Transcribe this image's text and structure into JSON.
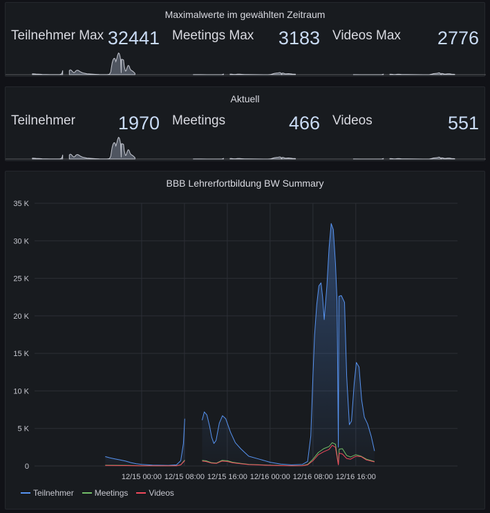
{
  "panel_max": {
    "title": "Maximalwerte im gewählten Zeitraum",
    "stats": [
      {
        "label": "Teilnehmer Max",
        "value": "32441"
      },
      {
        "label": "Meetings Max",
        "value": "3183"
      },
      {
        "label": "Videos Max",
        "value": "2776"
      }
    ]
  },
  "panel_current": {
    "title": "Aktuell",
    "stats": [
      {
        "label": "Teilnehmer",
        "value": "1970"
      },
      {
        "label": "Meetings",
        "value": "466"
      },
      {
        "label": "Videos",
        "value": "551"
      }
    ]
  },
  "colors": {
    "teilnehmer": "#5794f2",
    "meetings": "#73bf69",
    "videos": "#f2495c",
    "grid": "#2c2f36",
    "axis_text": "#c7c8d0"
  },
  "chart_data": {
    "type": "line",
    "title": "BBB Lehrerfortbildung BW Summary",
    "ylim": [
      0,
      35000
    ],
    "xlim": [
      -20,
      59
    ],
    "yticks": [
      {
        "v": 0,
        "label": "0"
      },
      {
        "v": 5000,
        "label": "5 K"
      },
      {
        "v": 10000,
        "label": "10 K"
      },
      {
        "v": 15000,
        "label": "15 K"
      },
      {
        "v": 20000,
        "label": "20 K"
      },
      {
        "v": 25000,
        "label": "25 K"
      },
      {
        "v": 30000,
        "label": "30 K"
      },
      {
        "v": 35000,
        "label": "35 K"
      }
    ],
    "xticks": [
      {
        "v": 0,
        "label": "12/15 00:00"
      },
      {
        "v": 8,
        "label": "12/15 08:00"
      },
      {
        "v": 16,
        "label": "12/15 16:00"
      },
      {
        "v": 24,
        "label": "12/16 00:00"
      },
      {
        "v": 32,
        "label": "12/16 08:00"
      },
      {
        "v": 40,
        "label": "12/16 16:00"
      }
    ],
    "series": [
      {
        "name": "Teilnehmer",
        "segments": [
          [
            [
              -6.8,
              1250
            ],
            [
              -6,
              1100
            ],
            [
              -5,
              950
            ],
            [
              -4,
              800
            ],
            [
              -3,
              650
            ],
            [
              -2,
              450
            ],
            [
              -1,
              300
            ],
            [
              0,
              200
            ],
            [
              2,
              120
            ],
            [
              5,
              80
            ],
            [
              6.5,
              150
            ],
            [
              7.3,
              700
            ],
            [
              7.8,
              3000
            ],
            [
              8.05,
              6300
            ]
          ],
          [
            [
              11.3,
              6100
            ],
            [
              11.7,
              7200
            ],
            [
              12.2,
              6800
            ],
            [
              12.7,
              5300
            ],
            [
              13.1,
              3800
            ],
            [
              13.5,
              3000
            ],
            [
              13.9,
              3400
            ],
            [
              14.5,
              5700
            ],
            [
              15.1,
              6700
            ],
            [
              15.7,
              6300
            ],
            [
              16.6,
              4500
            ],
            [
              17.5,
              3100
            ],
            [
              18.5,
              2300
            ],
            [
              20,
              1300
            ],
            [
              22,
              900
            ],
            [
              24,
              500
            ],
            [
              26,
              250
            ],
            [
              28,
              150
            ],
            [
              30,
              200
            ],
            [
              31,
              600
            ],
            [
              31.6,
              4000
            ],
            [
              32,
              12000
            ],
            [
              32.3,
              17500
            ],
            [
              32.7,
              21500
            ],
            [
              33.1,
              24000
            ],
            [
              33.5,
              24400
            ],
            [
              33.8,
              22500
            ],
            [
              34.1,
              19500
            ],
            [
              34.6,
              24000
            ],
            [
              35,
              29000
            ],
            [
              35.4,
              32300
            ],
            [
              35.8,
              31500
            ],
            [
              36.2,
              27000
            ],
            [
              36.5,
              22000
            ],
            [
              36.75,
              2500
            ],
            [
              36.85,
              22600
            ],
            [
              37.3,
              22700
            ],
            [
              37.9,
              21800
            ],
            [
              38.3,
              12000
            ],
            [
              38.8,
              5500
            ],
            [
              39.2,
              6000
            ],
            [
              39.7,
              11000
            ],
            [
              40.1,
              13800
            ],
            [
              40.6,
              13200
            ],
            [
              41.1,
              8800
            ],
            [
              41.6,
              6500
            ],
            [
              42.2,
              5600
            ],
            [
              42.9,
              3900
            ],
            [
              43.5,
              2000
            ]
          ]
        ]
      },
      {
        "name": "Meetings",
        "segments": [
          [
            [
              -6.8,
              100
            ],
            [
              -3,
              80
            ],
            [
              0,
              40
            ],
            [
              3,
              30
            ],
            [
              6.5,
              40
            ],
            [
              7.3,
              150
            ],
            [
              8.05,
              800
            ]
          ],
          [
            [
              11.3,
              750
            ],
            [
              12,
              700
            ],
            [
              13,
              450
            ],
            [
              14,
              400
            ],
            [
              15,
              750
            ],
            [
              16,
              700
            ],
            [
              17,
              500
            ],
            [
              18.5,
              350
            ],
            [
              20,
              220
            ],
            [
              24,
              100
            ],
            [
              28,
              40
            ],
            [
              30,
              50
            ],
            [
              31,
              200
            ],
            [
              32,
              900
            ],
            [
              33,
              1800
            ],
            [
              34,
              2300
            ],
            [
              35,
              2600
            ],
            [
              35.6,
              3100
            ],
            [
              36.2,
              2900
            ],
            [
              36.75,
              200
            ],
            [
              36.9,
              2250
            ],
            [
              37.5,
              2300
            ],
            [
              38.3,
              1400
            ],
            [
              39,
              1200
            ],
            [
              40,
              1500
            ],
            [
              41,
              1300
            ],
            [
              42,
              900
            ],
            [
              43.5,
              600
            ]
          ]
        ]
      },
      {
        "name": "Videos",
        "segments": [
          [
            [
              -6.8,
              60
            ],
            [
              -3,
              50
            ],
            [
              0,
              30
            ],
            [
              3,
              20
            ],
            [
              6.5,
              30
            ],
            [
              7.3,
              150
            ],
            [
              8.05,
              700
            ]
          ],
          [
            [
              11.3,
              650
            ],
            [
              12,
              600
            ],
            [
              13,
              400
            ],
            [
              14,
              350
            ],
            [
              15,
              650
            ],
            [
              16,
              600
            ],
            [
              17,
              420
            ],
            [
              18.5,
              300
            ],
            [
              20,
              180
            ],
            [
              24,
              80
            ],
            [
              28,
              30
            ],
            [
              30,
              40
            ],
            [
              31,
              150
            ],
            [
              32,
              700
            ],
            [
              33,
              1500
            ],
            [
              34,
              1900
            ],
            [
              35,
              2200
            ],
            [
              35.6,
              2750
            ],
            [
              36.2,
              2500
            ],
            [
              36.75,
              150
            ],
            [
              36.9,
              1700
            ],
            [
              37.5,
              1600
            ],
            [
              38.3,
              1000
            ],
            [
              39,
              900
            ],
            [
              40,
              1300
            ],
            [
              41,
              1250
            ],
            [
              42,
              800
            ],
            [
              43.5,
              550
            ]
          ]
        ]
      }
    ]
  }
}
